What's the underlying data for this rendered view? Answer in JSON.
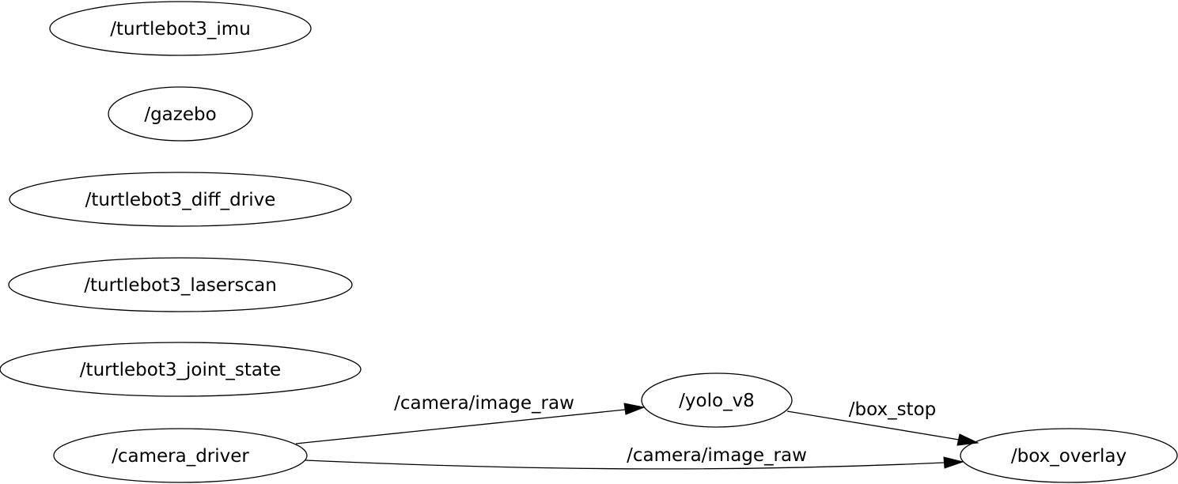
{
  "graph": {
    "nodes": [
      {
        "id": "turtlebot3_imu",
        "label": "/turtlebot3_imu"
      },
      {
        "id": "gazebo",
        "label": "/gazebo"
      },
      {
        "id": "turtlebot3_diff_drive",
        "label": "/turtlebot3_diff_drive"
      },
      {
        "id": "turtlebot3_laserscan",
        "label": "/turtlebot3_laserscan"
      },
      {
        "id": "turtlebot3_joint_state",
        "label": "/turtlebot3_joint_state"
      },
      {
        "id": "camera_driver",
        "label": "/camera_driver"
      },
      {
        "id": "yolo_v8",
        "label": "/yolo_v8"
      },
      {
        "id": "box_overlay",
        "label": "/box_overlay"
      }
    ],
    "edges": [
      {
        "from": "camera_driver",
        "to": "yolo_v8",
        "label": "/camera/image_raw"
      },
      {
        "from": "yolo_v8",
        "to": "box_overlay",
        "label": "/box_stop"
      },
      {
        "from": "camera_driver",
        "to": "box_overlay",
        "label": "/camera/image_raw"
      }
    ]
  }
}
